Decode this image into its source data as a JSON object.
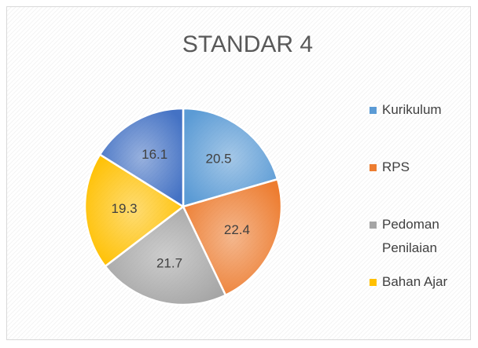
{
  "chart_data": {
    "type": "pie",
    "title": "STANDAR 4",
    "categories": [
      "Kurikulum",
      "RPS",
      "Pedoman Penilaian",
      "Bahan Ajar",
      null
    ],
    "values": [
      20.5,
      22.4,
      21.7,
      19.3,
      16.1
    ],
    "colors": [
      "#5b9bd5",
      "#ed7d31",
      "#a5a5a5",
      "#ffc000",
      "#4472c4"
    ],
    "legend": "right"
  }
}
